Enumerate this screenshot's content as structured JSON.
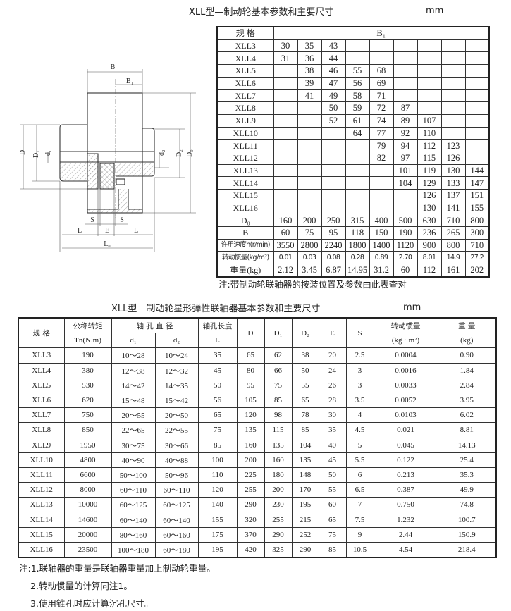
{
  "top": {
    "title": "XLL型—制动轮基本参数和主要尺寸",
    "unit": "mm",
    "header_spec": "规 格",
    "header_b1": "B₁",
    "rows": [
      {
        "spec": "XLL3",
        "b1": [
          "30",
          "35",
          "43",
          "",
          "",
          "",
          "",
          "",
          ""
        ]
      },
      {
        "spec": "XLL4",
        "b1": [
          "31",
          "36",
          "44",
          "",
          "",
          "",
          "",
          "",
          ""
        ]
      },
      {
        "spec": "XLL5",
        "b1": [
          "",
          "38",
          "46",
          "55",
          "68",
          "",
          "",
          "",
          ""
        ]
      },
      {
        "spec": "XLL6",
        "b1": [
          "",
          "39",
          "47",
          "56",
          "69",
          "",
          "",
          "",
          ""
        ]
      },
      {
        "spec": "XLL7",
        "b1": [
          "",
          "41",
          "49",
          "58",
          "71",
          "",
          "",
          "",
          ""
        ]
      },
      {
        "spec": "XLL8",
        "b1": [
          "",
          "",
          "50",
          "59",
          "72",
          "87",
          "",
          "",
          ""
        ]
      },
      {
        "spec": "XLL9",
        "b1": [
          "",
          "",
          "52",
          "61",
          "74",
          "89",
          "107",
          "",
          ""
        ]
      },
      {
        "spec": "XLL10",
        "b1": [
          "",
          "",
          "",
          "64",
          "77",
          "92",
          "110",
          "",
          ""
        ]
      },
      {
        "spec": "XLL11",
        "b1": [
          "",
          "",
          "",
          "",
          "79",
          "94",
          "112",
          "123",
          ""
        ]
      },
      {
        "spec": "XLL12",
        "b1": [
          "",
          "",
          "",
          "",
          "82",
          "97",
          "115",
          "126",
          ""
        ]
      },
      {
        "spec": "XLL13",
        "b1": [
          "",
          "",
          "",
          "",
          "",
          "101",
          "119",
          "130",
          "144"
        ]
      },
      {
        "spec": "XLL14",
        "b1": [
          "",
          "",
          "",
          "",
          "",
          "104",
          "129",
          "133",
          "147"
        ]
      },
      {
        "spec": "XLL15",
        "b1": [
          "",
          "",
          "",
          "",
          "",
          "",
          "126",
          "137",
          "151"
        ]
      },
      {
        "spec": "XLL16",
        "b1": [
          "",
          "",
          "",
          "",
          "",
          "",
          "130",
          "141",
          "155"
        ]
      }
    ],
    "params": [
      {
        "label": "D₀",
        "values": [
          "160",
          "200",
          "250",
          "315",
          "400",
          "500",
          "630",
          "710",
          "800"
        ]
      },
      {
        "label": "B",
        "values": [
          "60",
          "75",
          "95",
          "118",
          "150",
          "190",
          "236",
          "265",
          "300"
        ]
      },
      {
        "label": "许用速度n(r/min)",
        "values": [
          "3550",
          "2800",
          "2240",
          "1800",
          "1400",
          "1120",
          "900",
          "800",
          "710"
        ]
      },
      {
        "label": "转动惯量(kg/m²)",
        "values": [
          "0.01",
          "0.03",
          "0.08",
          "0.28",
          "0.89",
          "2.70",
          "8.01",
          "14.9",
          "27.2"
        ]
      },
      {
        "label": "重量(kg)",
        "values": [
          "2.12",
          "3.45",
          "6.87",
          "14.95",
          "31.2",
          "60",
          "112",
          "161",
          "202"
        ]
      }
    ],
    "note": "注:带制动轮联轴器的按装位置及参数由此表查对"
  },
  "diagram": {
    "labels": {
      "B": "B",
      "B1": "B₁",
      "D": "D",
      "D1": "D₁",
      "d1": "d₁",
      "d2": "d₂",
      "D2": "D₂",
      "D0": "D₀",
      "S": "S",
      "E": "E",
      "L": "L",
      "L0": "L₀"
    }
  },
  "bottom": {
    "title": "XLL型—制动轮星形弹性联轴器基本参数和主要尺寸",
    "unit": "mm",
    "headers": {
      "spec": "规  格",
      "torque": "公称转矩",
      "torque_unit": "Tn(N.m)",
      "bore": "轴 孔 直 径",
      "d1": "d₁",
      "d2": "d₂",
      "length": "轴孔长度",
      "length_sym": "L",
      "D": "D",
      "D1": "D₁",
      "D2": "D₂",
      "E": "E",
      "S": "S",
      "inertia": "转动惯量",
      "inertia_unit": "(kg · m²)",
      "weight": "重 量",
      "weight_unit": "(kg)"
    },
    "rows": [
      [
        "XLL3",
        "190",
        "10～28",
        "10～24",
        "35",
        "65",
        "62",
        "38",
        "20",
        "2.5",
        "0.0004",
        "0.90"
      ],
      [
        "XLL4",
        "380",
        "12～38",
        "12～32",
        "45",
        "80",
        "66",
        "50",
        "24",
        "3",
        "0.0016",
        "1.84"
      ],
      [
        "XLL5",
        "530",
        "14～42",
        "14～35",
        "50",
        "95",
        "75",
        "55",
        "26",
        "3",
        "0.0033",
        "2.84"
      ],
      [
        "XLL6",
        "620",
        "15～48",
        "15～42",
        "56",
        "105",
        "85",
        "65",
        "28",
        "3.5",
        "0.0052",
        "3.95"
      ],
      [
        "XLL7",
        "750",
        "20～55",
        "20～50",
        "65",
        "120",
        "98",
        "78",
        "30",
        "4",
        "0.0103",
        "6.02"
      ],
      [
        "XLL8",
        "850",
        "22～65",
        "22～55",
        "75",
        "135",
        "115",
        "85",
        "35",
        "4.5",
        "0.021",
        "8.81"
      ],
      [
        "XLL9",
        "1950",
        "30～75",
        "30～66",
        "85",
        "160",
        "135",
        "104",
        "40",
        "5",
        "0.045",
        "14.13"
      ],
      [
        "XLL10",
        "4800",
        "40～90",
        "40～88",
        "100",
        "200",
        "160",
        "135",
        "45",
        "5.5",
        "0.122",
        "25.4"
      ],
      [
        "XLL11",
        "6600",
        "50～100",
        "50～96",
        "110",
        "225",
        "180",
        "148",
        "50",
        "6",
        "0.213",
        "35.3"
      ],
      [
        "XLL12",
        "8000",
        "60～110",
        "60～110",
        "120",
        "255",
        "200",
        "170",
        "55",
        "6.5",
        "0.387",
        "49.9"
      ],
      [
        "XLL13",
        "10000",
        "60～125",
        "60～125",
        "140",
        "290",
        "230",
        "195",
        "60",
        "7",
        "0.750",
        "74.8"
      ],
      [
        "XLL14",
        "14600",
        "60～140",
        "60～140",
        "155",
        "320",
        "255",
        "215",
        "65",
        "7.5",
        "1.232",
        "100.7"
      ],
      [
        "XLL15",
        "20000",
        "80～160",
        "60～160",
        "175",
        "370",
        "290",
        "252",
        "75",
        "9",
        "2.44",
        "150.9"
      ],
      [
        "XLL16",
        "23500",
        "100～180",
        "60～180",
        "195",
        "420",
        "325",
        "290",
        "85",
        "10.5",
        "4.54",
        "218.4"
      ]
    ],
    "notes": [
      "注:1.联轴器的重量是联轴器重量加上制动轮重量。",
      "2.转动惯量的计算同注1。",
      "3.使用锥孔时应计算沉孔尺寸。"
    ]
  }
}
